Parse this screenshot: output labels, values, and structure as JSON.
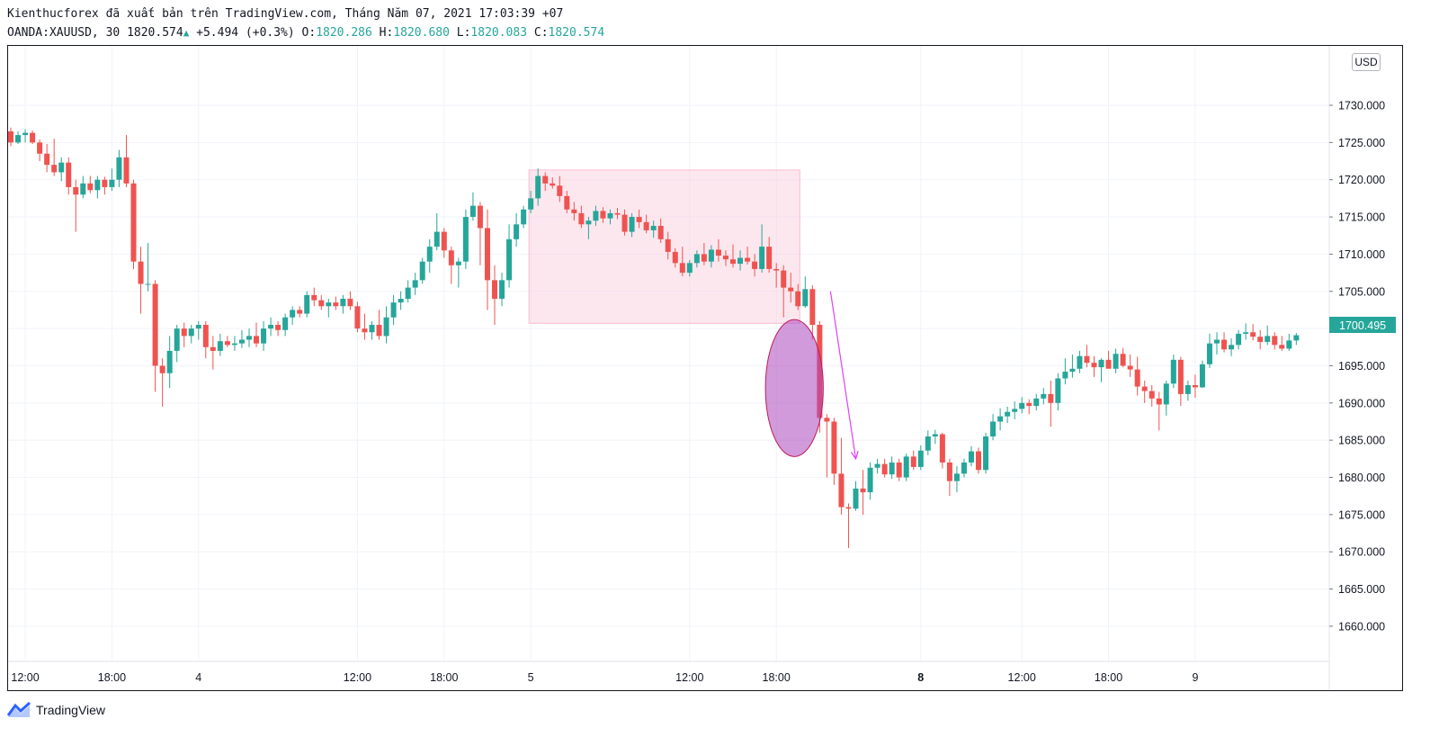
{
  "header": {
    "publish_line": "Kienthucforex đã xuất bản trên TradingView.com, Tháng Năm 07, 2021 17:03:39 +07",
    "symbol": "OANDA:XAUUSD, 30",
    "last": "1820.574",
    "change": "+5.494 (+0.3%)",
    "o_label": "O:",
    "o_value": "1820.286",
    "h_label": "H:",
    "h_value": "1820.680",
    "l_label": "L:",
    "l_value": "1820.083",
    "c_label": "C:",
    "c_value": "1820.574"
  },
  "currency_badge": "USD",
  "brand": {
    "name": "TradingView",
    "icon": "tradingview-logo-icon"
  },
  "colors": {
    "up": "#26a69a",
    "down": "#ef5350",
    "grid": "#f0f3fa",
    "zone": "#f8bbd0",
    "ellipse": "#ab47bc",
    "arrow": "#e040fb"
  },
  "chart_data": {
    "type": "candlestick",
    "symbol": "OANDA:XAUUSD",
    "interval": "30",
    "y_axis_ticks": [
      "1730.000",
      "1725.000",
      "1720.000",
      "1715.000",
      "1710.000",
      "1705.000",
      "1700.000",
      "1695.000",
      "1690.000",
      "1685.000",
      "1680.000",
      "1675.000",
      "1670.000",
      "1665.000",
      "1660.000"
    ],
    "y_tick_values": [
      1730,
      1725,
      1720,
      1715,
      1710,
      1705,
      1700,
      1695,
      1690,
      1685,
      1680,
      1675,
      1670,
      1665,
      1660
    ],
    "ylim": [
      1656,
      1736
    ],
    "last_price_label": "1700.495",
    "last_price": 1700.495,
    "x_axis_ticks": [
      {
        "label": "12:00",
        "bar": 2
      },
      {
        "label": "18:00",
        "bar": 14
      },
      {
        "label": "4",
        "bar": 26,
        "bold": false
      },
      {
        "label": "12:00",
        "bar": 48
      },
      {
        "label": "18:00",
        "bar": 60
      },
      {
        "label": "5",
        "bar": 72
      },
      {
        "label": "12:00",
        "bar": 94
      },
      {
        "label": "18:00",
        "bar": 106
      },
      {
        "label": "8",
        "bar": 126,
        "bold": true
      },
      {
        "label": "12:00",
        "bar": 140
      },
      {
        "label": "18:00",
        "bar": 152
      },
      {
        "label": "9",
        "bar": 164
      }
    ],
    "candles": [
      [
        1726.5,
        1727,
        1724.5,
        1725
      ],
      [
        1725,
        1726.5,
        1724.8,
        1726
      ],
      [
        1726,
        1726.8,
        1725,
        1726.3
      ],
      [
        1726.3,
        1726.6,
        1724.8,
        1725
      ],
      [
        1725,
        1725.4,
        1722.5,
        1723.5
      ],
      [
        1723.5,
        1724.8,
        1721,
        1722
      ],
      [
        1722,
        1725.5,
        1720.5,
        1721
      ],
      [
        1721,
        1723,
        1719.8,
        1722.3
      ],
      [
        1722.3,
        1723,
        1718,
        1719
      ],
      [
        1719,
        1720,
        1713,
        1718
      ],
      [
        1718,
        1720.5,
        1717.5,
        1719.5
      ],
      [
        1719.5,
        1720.5,
        1718.2,
        1718.6
      ],
      [
        1718.6,
        1720.5,
        1717.5,
        1720
      ],
      [
        1720,
        1720.4,
        1718,
        1719
      ],
      [
        1719,
        1721.5,
        1718.5,
        1720
      ],
      [
        1720,
        1724,
        1719,
        1723
      ],
      [
        1723,
        1726,
        1719,
        1719.5
      ],
      [
        1719.5,
        1720,
        1708,
        1709
      ],
      [
        1709,
        1711,
        1702,
        1706
      ],
      [
        1706,
        1711.5,
        1705,
        1706
      ],
      [
        1706,
        1706.5,
        1691.5,
        1695
      ],
      [
        1695,
        1696,
        1689.5,
        1694
      ],
      [
        1694,
        1699,
        1692,
        1697
      ],
      [
        1697,
        1700.5,
        1695.5,
        1700
      ],
      [
        1700,
        1700.8,
        1697.5,
        1699
      ],
      [
        1699,
        1700.5,
        1698,
        1700
      ],
      [
        1700,
        1701,
        1698.5,
        1700.5
      ],
      [
        1700.5,
        1701,
        1696,
        1697.5
      ],
      [
        1697.5,
        1699,
        1694.5,
        1697
      ],
      [
        1697,
        1699.3,
        1696.3,
        1698.3
      ],
      [
        1698.3,
        1699,
        1697.5,
        1697.8
      ],
      [
        1697.8,
        1699,
        1697,
        1698
      ],
      [
        1698,
        1699.8,
        1697.4,
        1698.5
      ],
      [
        1698.5,
        1700,
        1697.5,
        1699
      ],
      [
        1699,
        1700.8,
        1697.5,
        1698
      ],
      [
        1698,
        1701,
        1697,
        1700
      ],
      [
        1700,
        1701.5,
        1699,
        1700.5
      ],
      [
        1700.5,
        1701,
        1699,
        1699.8
      ],
      [
        1699.8,
        1702,
        1699,
        1701.5
      ],
      [
        1701.5,
        1703,
        1700.5,
        1702.5
      ],
      [
        1702.5,
        1703,
        1701.5,
        1702
      ],
      [
        1702,
        1705,
        1701.5,
        1704.5
      ],
      [
        1704.5,
        1705.5,
        1703,
        1703.8
      ],
      [
        1703.8,
        1704.5,
        1702.5,
        1703
      ],
      [
        1703,
        1704,
        1701.5,
        1703.5
      ],
      [
        1703.5,
        1704.3,
        1702.5,
        1703
      ],
      [
        1703,
        1704.5,
        1702,
        1704
      ],
      [
        1704,
        1705,
        1702.5,
        1703
      ],
      [
        1703,
        1703.6,
        1699.5,
        1700
      ],
      [
        1700,
        1702,
        1698.5,
        1699.5
      ],
      [
        1699.5,
        1701,
        1698.5,
        1700.5
      ],
      [
        1700.5,
        1702.5,
        1698.5,
        1699
      ],
      [
        1699,
        1703,
        1698,
        1701.5
      ],
      [
        1701.5,
        1704.5,
        1700.5,
        1703.5
      ],
      [
        1703.5,
        1705,
        1702.5,
        1704
      ],
      [
        1704,
        1706.5,
        1703.5,
        1705.5
      ],
      [
        1705.5,
        1707.5,
        1704.5,
        1706.5
      ],
      [
        1706.5,
        1709.5,
        1706,
        1709
      ],
      [
        1709,
        1712,
        1707.5,
        1711
      ],
      [
        1711,
        1715.5,
        1710.5,
        1713
      ],
      [
        1713,
        1713.5,
        1709.5,
        1710.5
      ],
      [
        1710.5,
        1711,
        1706,
        1708.5
      ],
      [
        1708.5,
        1709.5,
        1705.5,
        1709
      ],
      [
        1709,
        1716,
        1708,
        1715
      ],
      [
        1715,
        1718.3,
        1714.5,
        1716.5
      ],
      [
        1716.5,
        1717,
        1708.5,
        1713.5
      ],
      [
        1713.5,
        1716,
        1702.5,
        1706.5
      ],
      [
        1706.5,
        1708.5,
        1700.5,
        1704
      ],
      [
        1704,
        1707.5,
        1703,
        1706.5
      ],
      [
        1706.5,
        1714,
        1705.5,
        1712
      ],
      [
        1712,
        1715.5,
        1711,
        1714
      ],
      [
        1714,
        1716.5,
        1713.5,
        1716
      ],
      [
        1716,
        1718.5,
        1715.5,
        1717.5
      ],
      [
        1717.5,
        1721.5,
        1716.5,
        1720.5
      ],
      [
        1720.5,
        1721,
        1718.5,
        1719.5
      ],
      [
        1719.5,
        1720.3,
        1718.8,
        1719.2
      ],
      [
        1719.2,
        1720.5,
        1717,
        1717.8
      ],
      [
        1717.8,
        1718.5,
        1715.5,
        1716
      ],
      [
        1716,
        1717,
        1714.5,
        1715.5
      ],
      [
        1715.5,
        1716.5,
        1713.5,
        1714
      ],
      [
        1714,
        1715,
        1712,
        1714.5
      ],
      [
        1714.5,
        1716.5,
        1713.8,
        1715.8
      ],
      [
        1715.8,
        1716.3,
        1714.2,
        1714.8
      ],
      [
        1714.8,
        1716,
        1714,
        1715.5
      ],
      [
        1715.5,
        1716.2,
        1714.7,
        1715.3
      ],
      [
        1715.3,
        1716,
        1712.5,
        1713
      ],
      [
        1713,
        1715.5,
        1712.3,
        1715
      ],
      [
        1715,
        1716,
        1713.5,
        1714.3
      ],
      [
        1714.3,
        1715.3,
        1712.8,
        1713.2
      ],
      [
        1713.2,
        1714.5,
        1712.2,
        1713.8
      ],
      [
        1713.8,
        1714.8,
        1711.5,
        1712
      ],
      [
        1712,
        1713,
        1709.3,
        1710.3
      ],
      [
        1710.3,
        1710.8,
        1708.2,
        1708.8
      ],
      [
        1708.8,
        1711,
        1707,
        1707.5
      ],
      [
        1707.5,
        1709.2,
        1707,
        1708.8
      ],
      [
        1708.8,
        1710.5,
        1708.2,
        1710
      ],
      [
        1710,
        1711.5,
        1708.5,
        1709
      ],
      [
        1709,
        1711.2,
        1708.2,
        1710.6
      ],
      [
        1710.6,
        1712,
        1709,
        1709.8
      ],
      [
        1709.8,
        1710.5,
        1708.4,
        1709.3
      ],
      [
        1709.3,
        1711.3,
        1708.2,
        1708.7
      ],
      [
        1708.7,
        1710.5,
        1707.8,
        1709.5
      ],
      [
        1709.5,
        1711,
        1708.6,
        1709
      ],
      [
        1709,
        1710,
        1707,
        1708
      ],
      [
        1708,
        1714,
        1707.5,
        1711
      ],
      [
        1711,
        1712.3,
        1707.5,
        1708
      ],
      [
        1708,
        1708.8,
        1705.5,
        1707.8
      ],
      [
        1707.8,
        1708.5,
        1701.5,
        1705.5
      ],
      [
        1705.5,
        1707.5,
        1703.5,
        1705
      ],
      [
        1705,
        1706,
        1702.5,
        1703
      ],
      [
        1703,
        1707,
        1702.8,
        1705.3
      ],
      [
        1705.3,
        1705.8,
        1698.5,
        1700.5
      ],
      [
        1700.5,
        1701,
        1686,
        1688
      ],
      [
        1688,
        1688.5,
        1680,
        1687.5
      ],
      [
        1687.5,
        1688,
        1679,
        1680.5
      ],
      [
        1680.5,
        1685.3,
        1675,
        1676
      ],
      [
        1676,
        1676.5,
        1670.5,
        1675.8
      ],
      [
        1675.8,
        1679.5,
        1675.5,
        1678.5
      ],
      [
        1678.5,
        1681,
        1675,
        1678
      ],
      [
        1678,
        1682,
        1677,
        1681.3
      ],
      [
        1681.3,
        1682.5,
        1680.5,
        1681.8
      ],
      [
        1681.8,
        1682.5,
        1680,
        1680.4
      ],
      [
        1680.4,
        1682.8,
        1679.8,
        1682
      ],
      [
        1682,
        1682.5,
        1679.5,
        1680
      ],
      [
        1680,
        1683.2,
        1679.5,
        1682.8
      ],
      [
        1682.8,
        1683.6,
        1681,
        1681.4
      ],
      [
        1681.4,
        1684.3,
        1681,
        1683.6
      ],
      [
        1683.6,
        1686.3,
        1683,
        1685.5
      ],
      [
        1685.5,
        1686.4,
        1684.5,
        1685.8
      ],
      [
        1685.8,
        1686,
        1681.2,
        1682
      ],
      [
        1682,
        1682.5,
        1677.5,
        1679.5
      ],
      [
        1679.5,
        1681.5,
        1678,
        1680.5
      ],
      [
        1680.5,
        1682.5,
        1680,
        1682
      ],
      [
        1682,
        1684.2,
        1681.5,
        1683.5
      ],
      [
        1683.5,
        1684,
        1680.5,
        1681
      ],
      [
        1681,
        1686,
        1680.5,
        1685.5
      ],
      [
        1685.5,
        1688.5,
        1685,
        1687.5
      ],
      [
        1687.5,
        1689.3,
        1686.3,
        1688.2
      ],
      [
        1688.2,
        1689.5,
        1687.3,
        1688.8
      ],
      [
        1688.8,
        1690.2,
        1687.8,
        1689.2
      ],
      [
        1689.2,
        1690.8,
        1688.6,
        1690
      ],
      [
        1690,
        1690.5,
        1688.5,
        1689.6
      ],
      [
        1689.6,
        1691.2,
        1689,
        1690.6
      ],
      [
        1690.6,
        1692,
        1689.8,
        1691.2
      ],
      [
        1691.2,
        1693,
        1686.8,
        1690
      ],
      [
        1690,
        1694,
        1689,
        1693.3
      ],
      [
        1693.3,
        1696,
        1692.5,
        1694.2
      ],
      [
        1694.2,
        1696.5,
        1693.4,
        1694.6
      ],
      [
        1694.6,
        1697,
        1694,
        1696.3
      ],
      [
        1696.3,
        1697.8,
        1694.8,
        1695.4
      ],
      [
        1695.4,
        1696.3,
        1693.5,
        1694.8
      ],
      [
        1694.8,
        1696,
        1692.8,
        1695.8
      ],
      [
        1695.8,
        1697,
        1695,
        1694.6
      ],
      [
        1694.6,
        1697.3,
        1694,
        1696.6
      ],
      [
        1696.6,
        1697.4,
        1694.8,
        1695
      ],
      [
        1695,
        1696.5,
        1693.5,
        1694.5
      ],
      [
        1694.5,
        1696.2,
        1691,
        1692.2
      ],
      [
        1692.2,
        1693,
        1690,
        1691.6
      ],
      [
        1691.6,
        1692.4,
        1689.5,
        1690.6
      ],
      [
        1690.6,
        1691.5,
        1686.3,
        1689.8
      ],
      [
        1689.8,
        1693,
        1688.3,
        1692.6
      ],
      [
        1692.6,
        1696.5,
        1692,
        1695.8
      ],
      [
        1695.8,
        1696.2,
        1689.6,
        1691.2
      ],
      [
        1691.2,
        1693,
        1690.3,
        1692.4
      ],
      [
        1692.4,
        1693.8,
        1690.7,
        1692.1
      ],
      [
        1692.1,
        1695.7,
        1692,
        1695.2
      ],
      [
        1695.2,
        1699.3,
        1694.7,
        1698
      ],
      [
        1698,
        1699.5,
        1696.5,
        1698.5
      ],
      [
        1698.5,
        1699.5,
        1696.8,
        1697.2
      ],
      [
        1697.2,
        1698.7,
        1696.3,
        1697.8
      ],
      [
        1697.8,
        1699.8,
        1697.2,
        1699.3
      ],
      [
        1699.3,
        1700.7,
        1698.5,
        1699.5
      ],
      [
        1699.5,
        1700.6,
        1698.4,
        1698.9
      ],
      [
        1698.9,
        1699.8,
        1697.2,
        1698.2
      ],
      [
        1698.2,
        1700.4,
        1697.8,
        1699
      ],
      [
        1699,
        1699.5,
        1697.2,
        1697.8
      ],
      [
        1697.8,
        1699,
        1697,
        1697.3
      ],
      [
        1697.3,
        1699.3,
        1697,
        1698.4
      ],
      [
        1698.4,
        1699.4,
        1697.8,
        1699.1
      ]
    ],
    "annotations": {
      "zone": {
        "from_bar": 72,
        "to_bar": 109,
        "top": 1721.3,
        "bottom": 1700.7
      },
      "ellipse": {
        "center_bar": 108.5,
        "center_price": 1692,
        "price_half_height": 9.2,
        "bar_half_width": 4
      },
      "arrow": {
        "from_bar": 113.5,
        "from_price": 1705,
        "to_bar": 117,
        "to_price": 1682.5
      }
    }
  }
}
